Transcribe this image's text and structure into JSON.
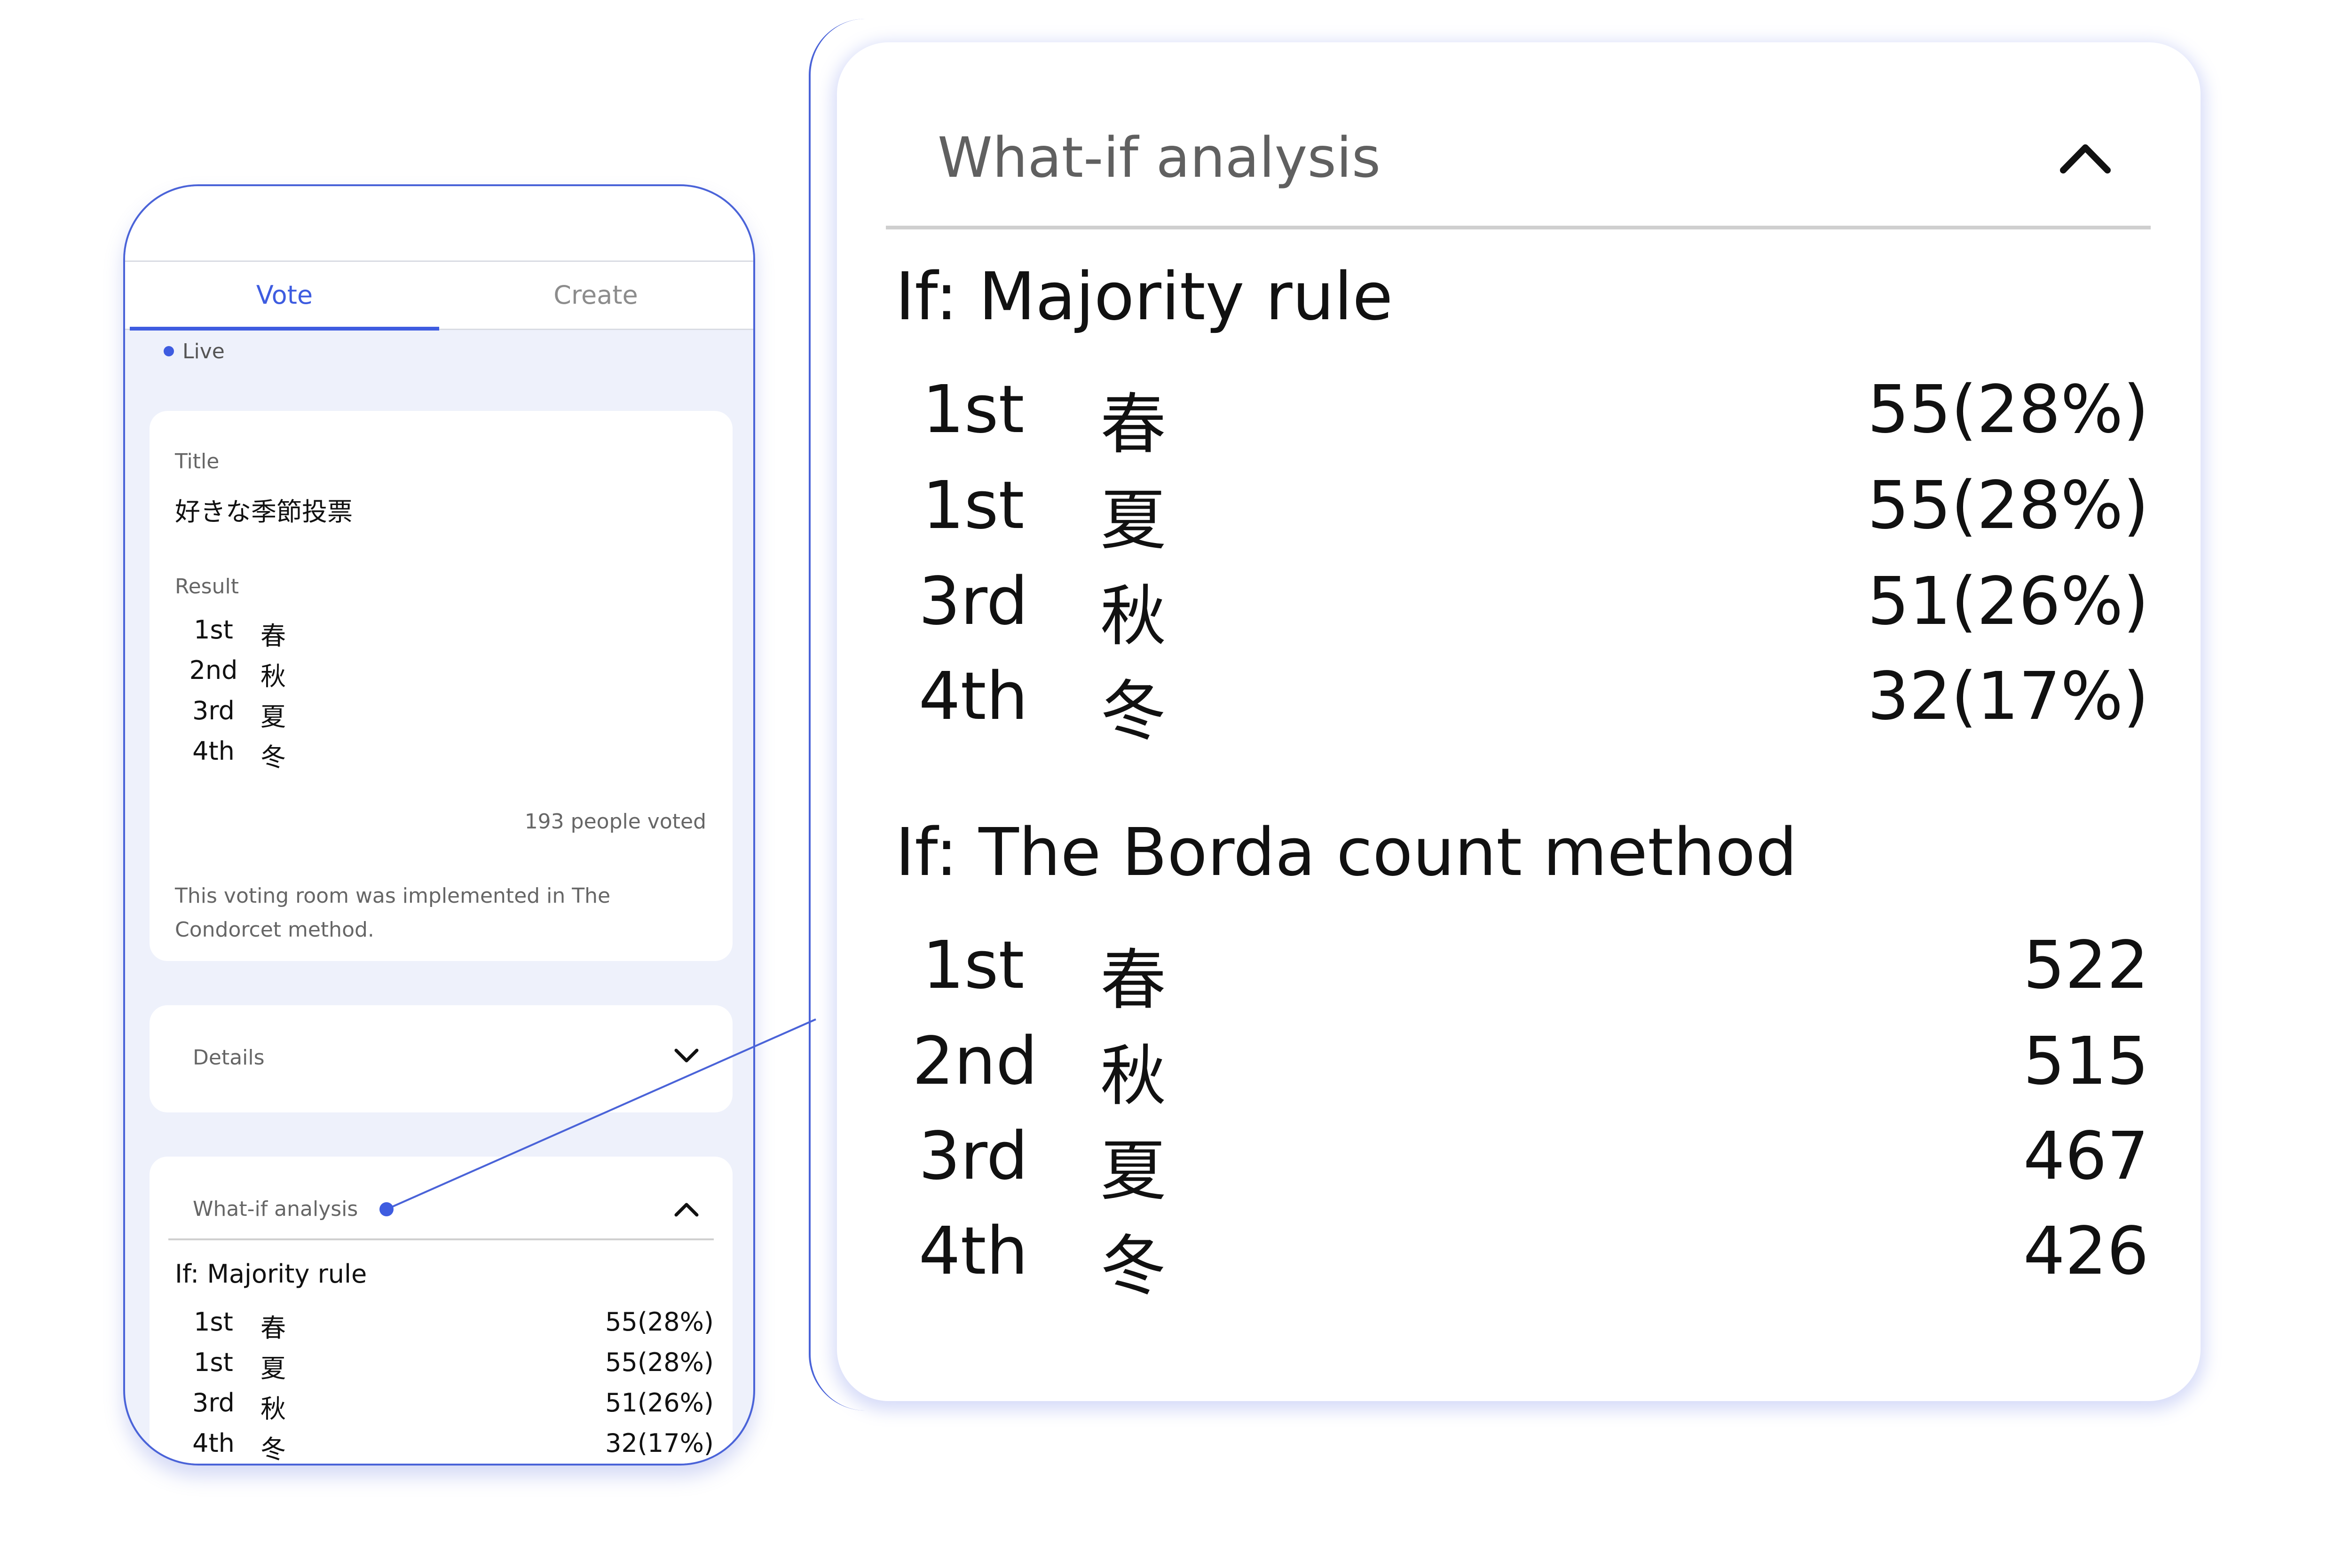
{
  "tabs": {
    "vote": "Vote",
    "create": "Create"
  },
  "status": {
    "live": "Live"
  },
  "main_card": {
    "title_label": "Title",
    "title_value": "好きな季節投票",
    "result_label": "Result",
    "results": [
      {
        "rank": "1st",
        "option": "春"
      },
      {
        "rank": "2nd",
        "option": "秋"
      },
      {
        "rank": "3rd",
        "option": "夏"
      },
      {
        "rank": "4th",
        "option": "冬"
      }
    ],
    "voters": "193 people voted",
    "method_note_line1": "This voting room was implemented in The",
    "method_note_line2": "Condorcet method."
  },
  "details": {
    "label": "Details",
    "icon": "chevron-down-icon"
  },
  "whatif": {
    "label": "What-if analysis",
    "icon": "chevron-up-icon",
    "majority_heading": "If: Majority rule",
    "majority": [
      {
        "rank": "1st",
        "option": "春",
        "value": "55(28%)"
      },
      {
        "rank": "1st",
        "option": "夏",
        "value": "55(28%)"
      },
      {
        "rank": "3rd",
        "option": "秋",
        "value": "51(26%)"
      },
      {
        "rank": "4th",
        "option": "冬",
        "value": "32(17%)"
      }
    ],
    "borda_heading": "If: The Borda count method",
    "borda": [
      {
        "rank": "1st",
        "option": "春",
        "value": "522"
      },
      {
        "rank": "2nd",
        "option": "秋",
        "value": "515"
      },
      {
        "rank": "3rd",
        "option": "夏",
        "value": "467"
      },
      {
        "rank": "4th",
        "option": "冬",
        "value": "426"
      }
    ]
  },
  "colors": {
    "accent": "#3e5ce0",
    "background": "#eef1fb",
    "card": "#ffffff"
  }
}
